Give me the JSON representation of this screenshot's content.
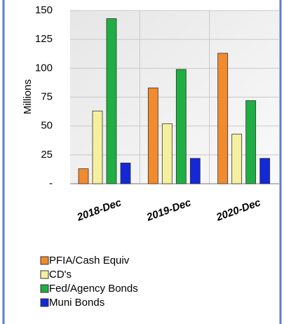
{
  "chart_data": {
    "type": "bar",
    "y_label": "Millions",
    "categories": [
      "2018-Dec",
      "2019-Dec",
      "2020-Dec"
    ],
    "series": [
      {
        "name": "PFIA/Cash Equiv",
        "color": "#f28a2e",
        "values": [
          13,
          83,
          113
        ]
      },
      {
        "name": "CD's",
        "color": "#f4f0a0",
        "values": [
          63,
          52,
          43
        ]
      },
      {
        "name": "Fed/Agency Bonds",
        "color": "#1fae43",
        "values": [
          143,
          99,
          72
        ]
      },
      {
        "name": "Muni Bonds",
        "color": "#1428d6",
        "values": [
          18,
          22,
          22
        ]
      }
    ],
    "ylim": [
      0,
      150
    ],
    "yticks": [
      {
        "value": 0,
        "label": "-"
      },
      25,
      50,
      75,
      100,
      125,
      150
    ],
    "grid": true
  }
}
